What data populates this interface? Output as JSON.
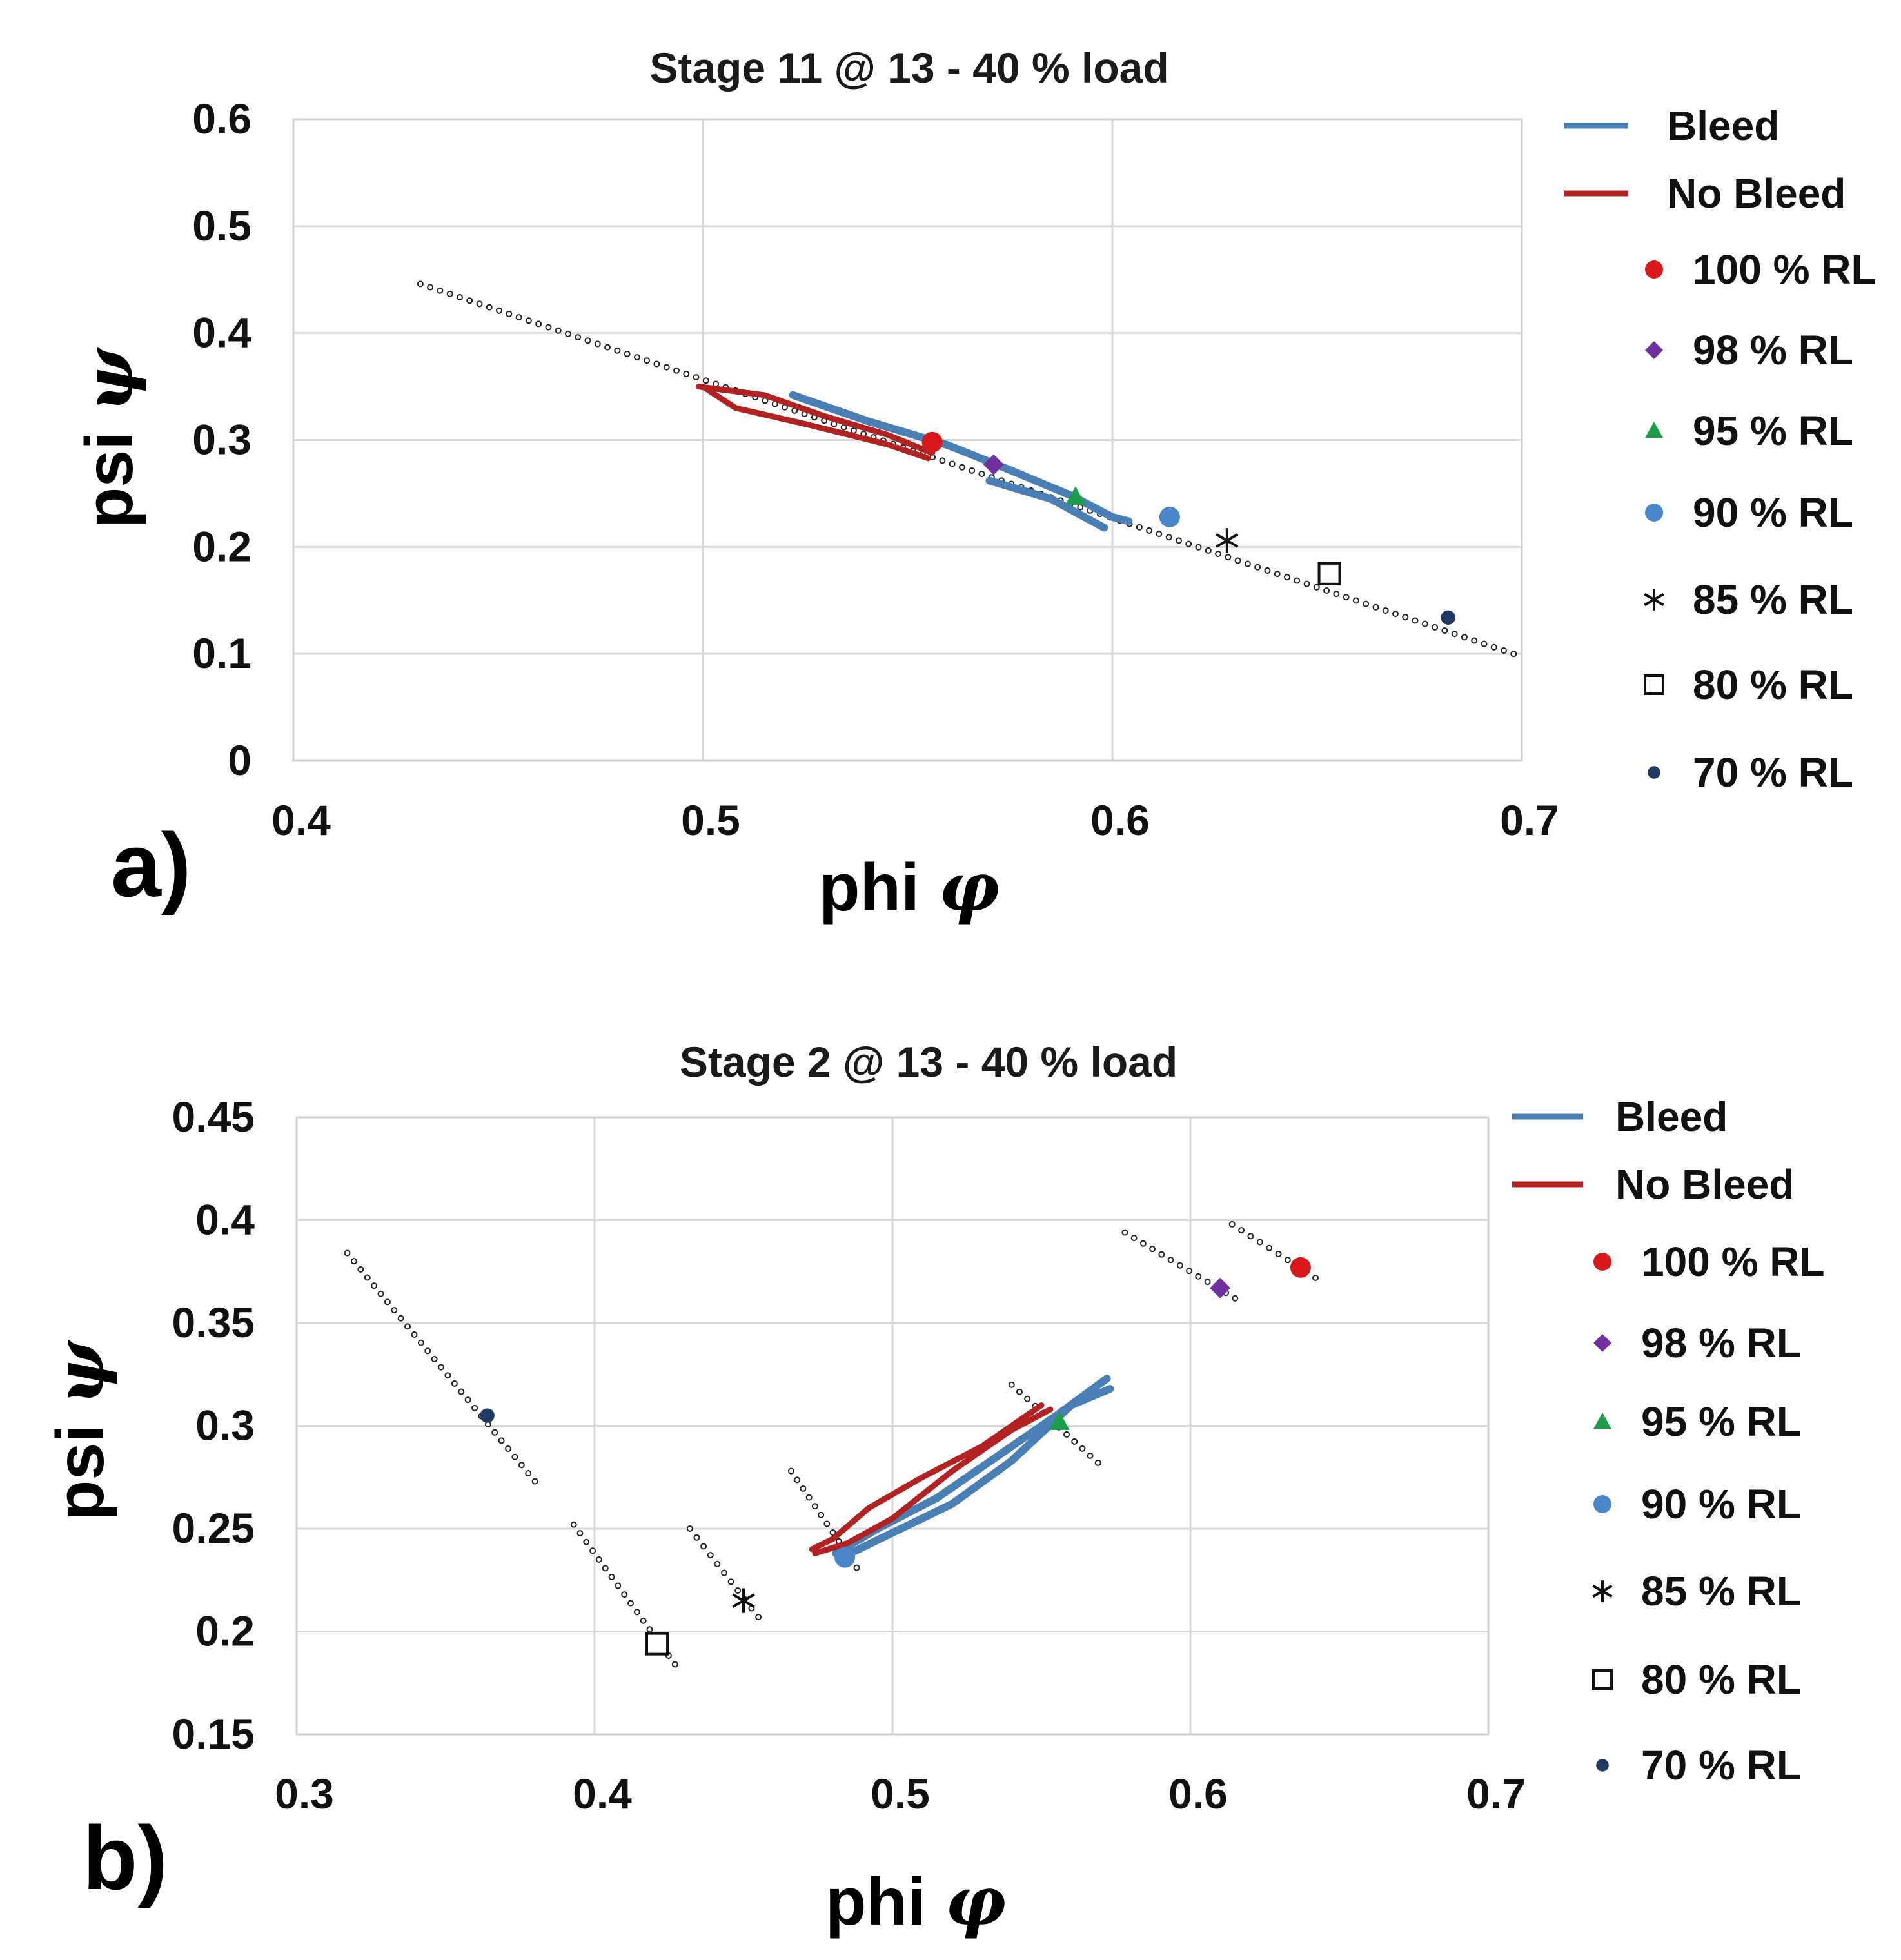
{
  "colors": {
    "bleed": "#4a7fb5",
    "no_bleed": "#b22222",
    "rl100": "#d7191c",
    "rl98": "#7030a0",
    "rl95": "#1e9e4a",
    "rl90": "#4a86c8",
    "rl85": "#111111",
    "rl80": "#111111",
    "rl70": "#1f3864",
    "dots": "#222222"
  },
  "legend_labels": {
    "bleed": "Bleed",
    "no_bleed": "No Bleed",
    "rl100": "100 % RL",
    "rl98": "98 % RL",
    "rl95": "95 % RL",
    "rl90": "90 % RL",
    "rl85": "85 % RL",
    "rl80": "80 % RL",
    "rl70": "70 % RL"
  },
  "chart_data": [
    {
      "type": "scatter",
      "panel_label": "a)",
      "title": "Stage 11 @ 13 - 40 % load",
      "xlabel": "phi",
      "xlabel_symbol": "φ",
      "ylabel": "psi",
      "ylabel_symbol": "ψ",
      "xlim": [
        0.4,
        0.7
      ],
      "ylim": [
        0,
        0.6
      ],
      "xticks": [
        0.4,
        0.5,
        0.6,
        0.7
      ],
      "xtick_labels": [
        "0.4",
        "0.5",
        "0.6",
        "0.7"
      ],
      "yticks": [
        0,
        0.1,
        0.2,
        0.3,
        0.4,
        0.5,
        0.6
      ],
      "ytick_labels": [
        "0",
        "0.1",
        "0.2",
        "0.3",
        "0.4",
        "0.5",
        "0.6"
      ],
      "grid": true,
      "legend_position": "right",
      "dotted_trend": [
        [
          [
            0.431,
            0.446
          ],
          [
            0.698,
            0.1
          ]
        ]
      ],
      "bleed_lines": [
        [
          [
            0.522,
            0.342
          ],
          [
            0.54,
            0.318
          ],
          [
            0.56,
            0.295
          ],
          [
            0.575,
            0.272
          ],
          [
            0.59,
            0.248
          ],
          [
            0.6,
            0.228
          ],
          [
            0.604,
            0.224
          ]
        ],
        [
          [
            0.57,
            0.262
          ],
          [
            0.585,
            0.245
          ],
          [
            0.598,
            0.218
          ]
        ]
      ],
      "no_bleed_lines": [
        [
          [
            0.499,
            0.35
          ],
          [
            0.515,
            0.342
          ],
          [
            0.53,
            0.322
          ],
          [
            0.545,
            0.305
          ],
          [
            0.556,
            0.288
          ]
        ],
        [
          [
            0.5,
            0.35
          ],
          [
            0.508,
            0.33
          ],
          [
            0.525,
            0.315
          ],
          [
            0.545,
            0.296
          ],
          [
            0.555,
            0.283
          ]
        ]
      ],
      "markers": [
        {
          "key": "rl100",
          "shape": "circle",
          "x": 0.556,
          "y": 0.298
        },
        {
          "key": "rl98",
          "shape": "diamond",
          "x": 0.571,
          "y": 0.277
        },
        {
          "key": "rl95",
          "shape": "triangle",
          "x": 0.591,
          "y": 0.247
        },
        {
          "key": "rl90",
          "shape": "circle",
          "x": 0.614,
          "y": 0.228
        },
        {
          "key": "rl85",
          "shape": "asterisk",
          "x": 0.628,
          "y": 0.206
        },
        {
          "key": "rl80",
          "shape": "square",
          "x": 0.653,
          "y": 0.175
        },
        {
          "key": "rl70",
          "shape": "smallcircle",
          "x": 0.682,
          "y": 0.134
        }
      ]
    },
    {
      "type": "scatter",
      "panel_label": "b)",
      "title": "Stage 2 @ 13 - 40 % load",
      "xlabel": "phi",
      "xlabel_symbol": "φ",
      "ylabel": "psi",
      "ylabel_symbol": "ψ",
      "xlim": [
        0.3,
        0.7
      ],
      "ylim": [
        0.15,
        0.45
      ],
      "xticks": [
        0.3,
        0.4,
        0.5,
        0.6,
        0.7
      ],
      "xtick_labels": [
        "0.3",
        "0.4",
        "0.5",
        "0.6",
        "0.7"
      ],
      "yticks": [
        0.15,
        0.2,
        0.25,
        0.3,
        0.35,
        0.4,
        0.45
      ],
      "ytick_labels": [
        "0.15",
        "0.2",
        "0.25",
        "0.3",
        "0.35",
        "0.4",
        "0.45"
      ],
      "grid": true,
      "legend_position": "right",
      "dotted_trend": [
        [
          [
            0.317,
            0.384
          ],
          [
            0.38,
            0.273
          ]
        ],
        [
          [
            0.393,
            0.252
          ],
          [
            0.427,
            0.184
          ]
        ],
        [
          [
            0.432,
            0.25
          ],
          [
            0.455,
            0.207
          ]
        ],
        [
          [
            0.466,
            0.278
          ],
          [
            0.488,
            0.231
          ]
        ],
        [
          [
            0.578,
            0.394
          ],
          [
            0.615,
            0.362
          ]
        ],
        [
          [
            0.614,
            0.398
          ],
          [
            0.642,
            0.372
          ]
        ],
        [
          [
            0.54,
            0.32
          ],
          [
            0.569,
            0.282
          ]
        ]
      ],
      "bleed_lines": [
        [
          [
            0.481,
            0.238
          ],
          [
            0.495,
            0.25
          ],
          [
            0.515,
            0.265
          ],
          [
            0.535,
            0.285
          ],
          [
            0.555,
            0.305
          ],
          [
            0.572,
            0.323
          ]
        ],
        [
          [
            0.483,
            0.236
          ],
          [
            0.5,
            0.248
          ],
          [
            0.52,
            0.262
          ],
          [
            0.54,
            0.283
          ],
          [
            0.56,
            0.31
          ],
          [
            0.573,
            0.318
          ]
        ]
      ],
      "no_bleed_lines": [
        [
          [
            0.473,
            0.24
          ],
          [
            0.48,
            0.245
          ],
          [
            0.492,
            0.26
          ],
          [
            0.51,
            0.275
          ],
          [
            0.53,
            0.29
          ],
          [
            0.55,
            0.31
          ]
        ],
        [
          [
            0.474,
            0.238
          ],
          [
            0.485,
            0.243
          ],
          [
            0.5,
            0.255
          ],
          [
            0.52,
            0.278
          ],
          [
            0.54,
            0.298
          ],
          [
            0.553,
            0.308
          ]
        ]
      ],
      "markers": [
        {
          "key": "rl100",
          "shape": "circle",
          "x": 0.637,
          "y": 0.377
        },
        {
          "key": "rl98",
          "shape": "diamond",
          "x": 0.61,
          "y": 0.367
        },
        {
          "key": "rl95",
          "shape": "triangle",
          "x": 0.556,
          "y": 0.302
        },
        {
          "key": "rl90",
          "shape": "circle",
          "x": 0.484,
          "y": 0.236
        },
        {
          "key": "rl85",
          "shape": "asterisk",
          "x": 0.45,
          "y": 0.215
        },
        {
          "key": "rl80",
          "shape": "square",
          "x": 0.421,
          "y": 0.194
        },
        {
          "key": "rl70",
          "shape": "smallcircle",
          "x": 0.364,
          "y": 0.305
        }
      ]
    }
  ]
}
